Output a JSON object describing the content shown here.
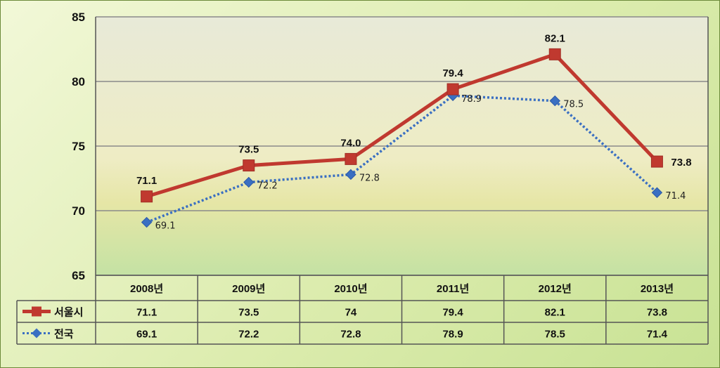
{
  "chart_data": {
    "type": "line",
    "categories": [
      "2008년",
      "2009년",
      "2010년",
      "2011년",
      "2012년",
      "2013년"
    ],
    "ylim": [
      65,
      85
    ],
    "yticks": [
      65,
      70,
      75,
      80,
      85
    ],
    "grid": true,
    "series": [
      {
        "name": "서울시",
        "values": [
          71.1,
          73.5,
          74.0,
          79.4,
          82.1,
          73.8
        ],
        "labels": [
          "71.1",
          "73.5",
          "74.0",
          "79.4",
          "82.1",
          "73.8"
        ],
        "table_values": [
          "71.1",
          "73.5",
          "74",
          "79.4",
          "82.1",
          "73.8"
        ],
        "color": "#c0392f"
      },
      {
        "name": "전국",
        "values": [
          69.1,
          72.2,
          72.8,
          78.9,
          78.5,
          71.4
        ],
        "labels": [
          "69.1",
          "72.2",
          "72.8",
          "78.9",
          "78.5",
          "71.4"
        ],
        "table_values": [
          "69.1",
          "72.2",
          "72.8",
          "78.9",
          "78.5",
          "71.4"
        ],
        "color": "#3a6fc2"
      }
    ]
  }
}
